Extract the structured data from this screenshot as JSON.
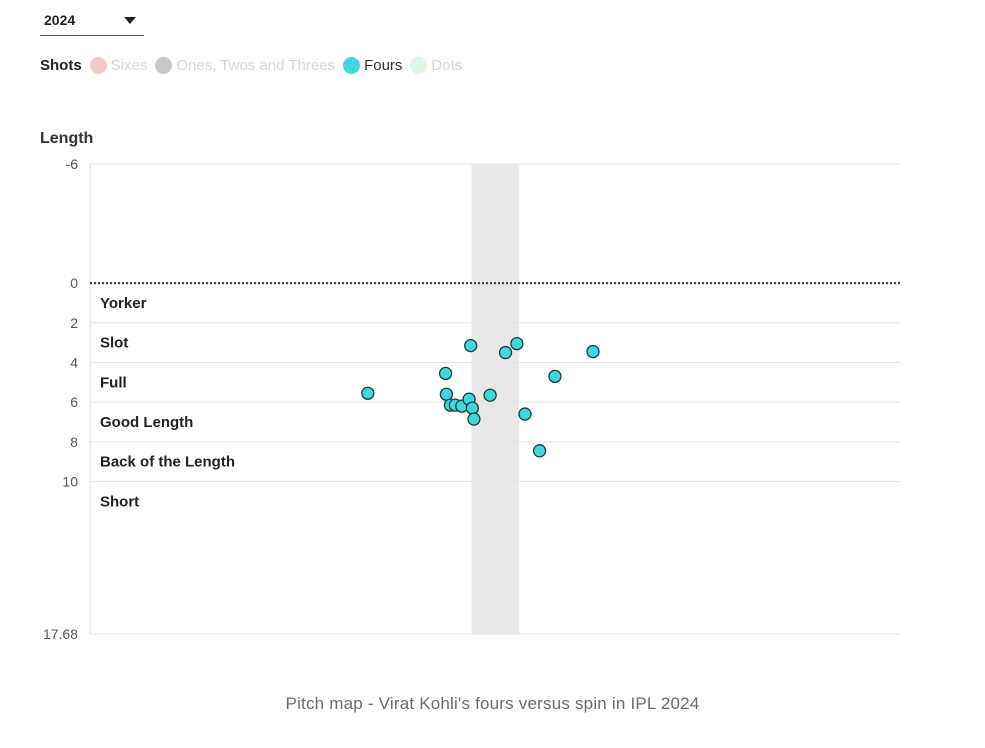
{
  "year_select": {
    "value": "2024"
  },
  "legend": {
    "title": "Shots",
    "items": [
      {
        "label": "Sixes",
        "color": "#f2c9c9",
        "active": false
      },
      {
        "label": "Ones, Twos and Threes",
        "color": "#c8c8c8",
        "active": false
      },
      {
        "label": "Fours",
        "color": "#3fd8dc",
        "active": true
      },
      {
        "label": "Dots",
        "color": "#dff5e6",
        "active": false
      }
    ]
  },
  "caption": "Pitch map - Virat Kohli's fours versus spin in IPL 2024",
  "chart_data": {
    "type": "scatter",
    "title": "",
    "ylabel": "Length",
    "xlabel": "",
    "ylim": [
      -6,
      17.68
    ],
    "y_inverted": true,
    "xlim": [
      0,
      1
    ],
    "x_ticks_shown": false,
    "stumps_band": [
      0.471,
      0.53
    ],
    "y_ticks": [
      "-6",
      "0",
      "2",
      "4",
      "6",
      "8",
      "10",
      "17.68"
    ],
    "crease_line_at": 0,
    "grid_lines_at": [
      2,
      4,
      6,
      8,
      10
    ],
    "zones": [
      "Yorker",
      "Slot",
      "Full",
      "Good Length",
      "Back of the Length",
      "Short"
    ],
    "series": [
      {
        "name": "Fours",
        "color": "#3fd8dc",
        "points": [
          {
            "x": 0.343,
            "y": 5.55
          },
          {
            "x": 0.439,
            "y": 4.55
          },
          {
            "x": 0.44,
            "y": 5.6
          },
          {
            "x": 0.445,
            "y": 6.15
          },
          {
            "x": 0.451,
            "y": 6.15
          },
          {
            "x": 0.459,
            "y": 6.2
          },
          {
            "x": 0.468,
            "y": 5.85
          },
          {
            "x": 0.472,
            "y": 6.3
          },
          {
            "x": 0.474,
            "y": 6.85
          },
          {
            "x": 0.47,
            "y": 3.15
          },
          {
            "x": 0.494,
            "y": 5.65
          },
          {
            "x": 0.513,
            "y": 3.5
          },
          {
            "x": 0.527,
            "y": 3.05
          },
          {
            "x": 0.537,
            "y": 6.6
          },
          {
            "x": 0.555,
            "y": 8.45
          },
          {
            "x": 0.574,
            "y": 4.7
          },
          {
            "x": 0.621,
            "y": 3.45
          }
        ]
      }
    ]
  }
}
